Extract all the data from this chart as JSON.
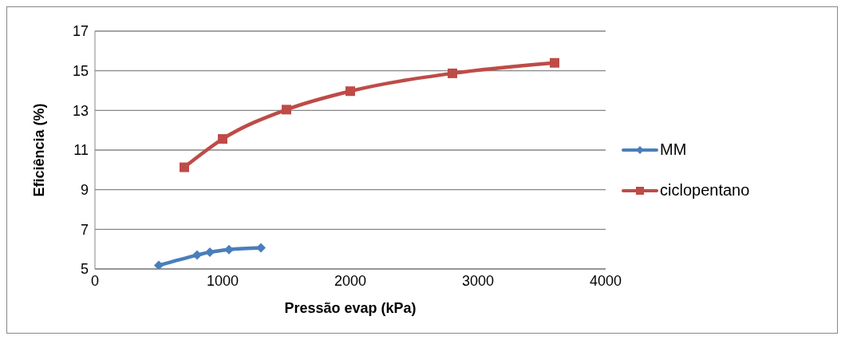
{
  "chart_data": {
    "type": "line",
    "xlabel": "Pressão evap (kPa)",
    "ylabel": "Eficiência (%)",
    "xlim": [
      0,
      4000
    ],
    "xticks": [
      0,
      1000,
      2000,
      3000,
      4000
    ],
    "ylim": [
      5,
      17
    ],
    "yticks": [
      5,
      7,
      9,
      11,
      13,
      15,
      17
    ],
    "grid": "y",
    "legend": "right",
    "series": [
      {
        "name": "MM",
        "color": "#4a7ebb",
        "marker": "diamond",
        "x": [
          500,
          800,
          900,
          1050,
          1300
        ],
        "values": [
          5.18,
          5.7,
          5.85,
          5.98,
          6.07
        ]
      },
      {
        "name": "ciclopentano",
        "color": "#be4b48",
        "marker": "square",
        "x": [
          700,
          1000,
          1500,
          2000,
          2800,
          3600
        ],
        "values": [
          10.13,
          11.56,
          13.04,
          13.97,
          14.87,
          15.4
        ]
      }
    ]
  }
}
